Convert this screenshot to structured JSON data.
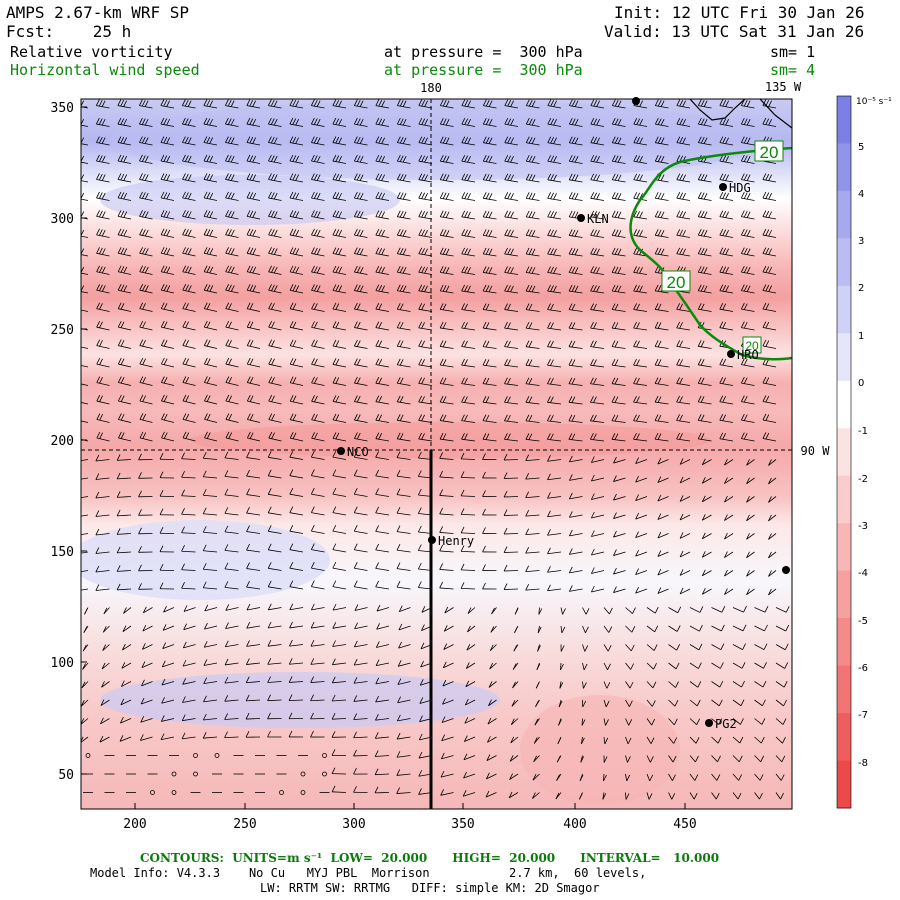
{
  "header": {
    "model": "AMPS 2.67-km WRF SP",
    "fcst": "Fcst:    25 h",
    "init": "Init: 12 UTC Fri 30 Jan 26",
    "valid": "Valid: 13 UTC Sat 31 Jan 26",
    "field1_name": "Relative vorticity",
    "field1_level": "at pressure =  300 hPa",
    "field1_sm": "sm= 1",
    "field2_name": "Horizontal wind speed",
    "field2_level": "at pressure =  300 hPa",
    "field2_sm": "sm= 4"
  },
  "map": {
    "lon_label_top": "180",
    "lon_label_corner": "135 W",
    "lon_label_right": "90 W",
    "x_ticks": [
      "200",
      "250",
      "300",
      "350",
      "400",
      "450"
    ],
    "y_ticks": [
      "350",
      "300",
      "250",
      "200",
      "150",
      "100",
      "50"
    ],
    "stations": [
      {
        "name": "HDG"
      },
      {
        "name": "KLN"
      },
      {
        "name": "HRO"
      },
      {
        "name": "NCO"
      },
      {
        "name": "Henry"
      },
      {
        "name": "PG2"
      }
    ],
    "contour_labels": [
      "20",
      "20",
      "20"
    ]
  },
  "colorbar": {
    "unit": "10⁻⁵ s⁻¹",
    "labels": [
      "5",
      "4",
      "3",
      "2",
      "1",
      "0",
      "-1",
      "-2",
      "-3",
      "-4",
      "-5",
      "-6",
      "-7",
      "-8"
    ],
    "colors": [
      "#7b7fe6",
      "#9094ea",
      "#a6a9ee",
      "#bbbdf2",
      "#d0d1f6",
      "#e6e6fa",
      "#ffffff",
      "#fde2e2",
      "#fbcccc",
      "#f9b6b6",
      "#f7a0a0",
      "#f58a8a",
      "#f27474",
      "#ef5e5e",
      "#ec4a4a"
    ]
  },
  "footer": {
    "contours": "CONTOURS:  UNITS=m s⁻¹  LOW=  20.000      HIGH=  20.000      INTERVAL=   10.000",
    "model_info": "Model Info: V4.3.3    No Cu   MYJ PBL  Morrison           2.7 km,  60 levels,",
    "model_info2": "LW: RRTM SW: RRTMG   DIFF: simple KM: 2D Smagor"
  }
}
